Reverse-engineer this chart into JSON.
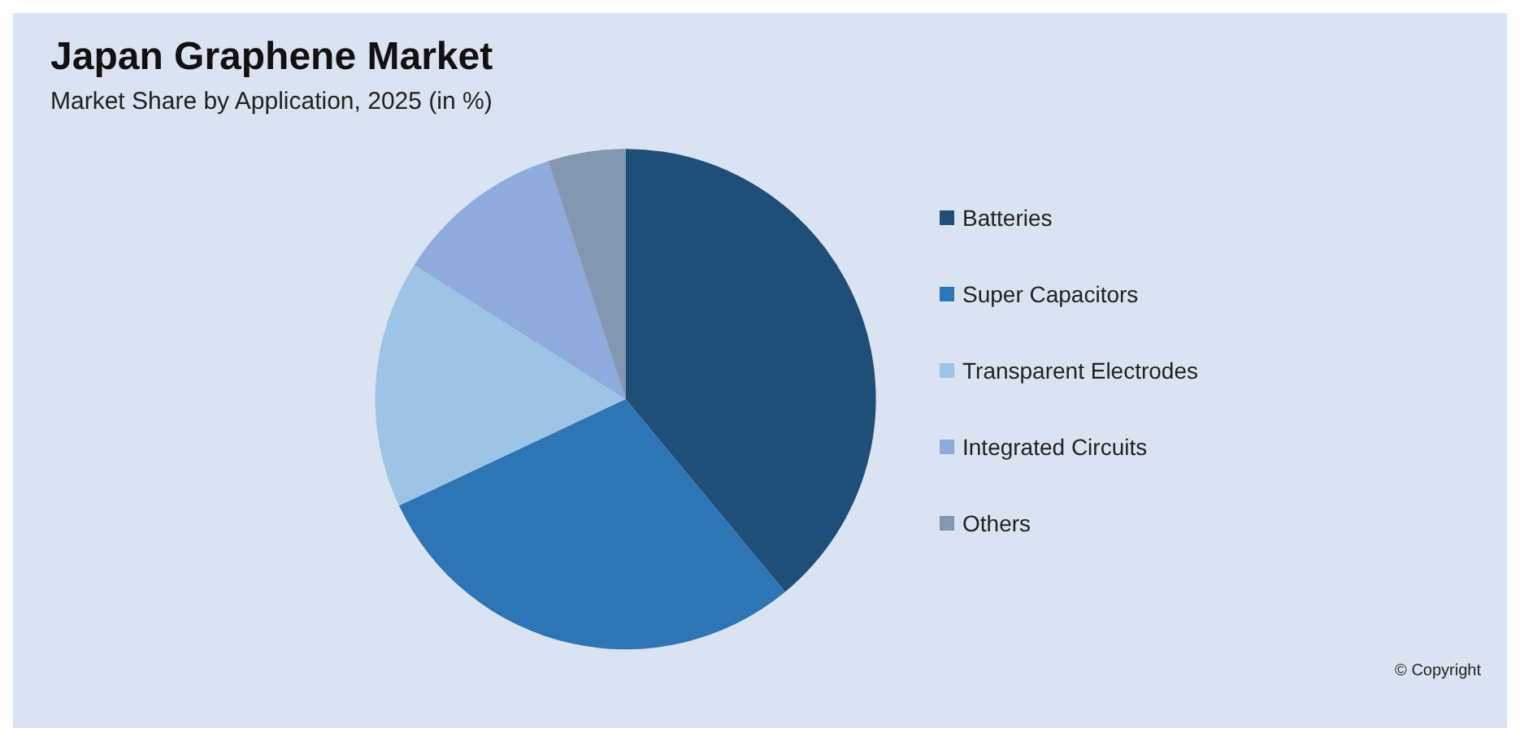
{
  "chart_data": {
    "type": "pie",
    "title": "Japan Graphene Market",
    "subtitle": "Market Share by Application, 2025 (in %)",
    "categories": [
      "Batteries",
      "Super Capacitors",
      "Transparent Electrodes",
      "Integrated Circuits",
      "Others"
    ],
    "values": [
      39,
      29,
      16,
      11,
      5
    ],
    "colors": [
      "#1f4e79",
      "#2e75b6",
      "#9dc3e6",
      "#8faadc",
      "#8497b0"
    ],
    "legend": "right",
    "annotations": [
      "© Copyright"
    ]
  }
}
